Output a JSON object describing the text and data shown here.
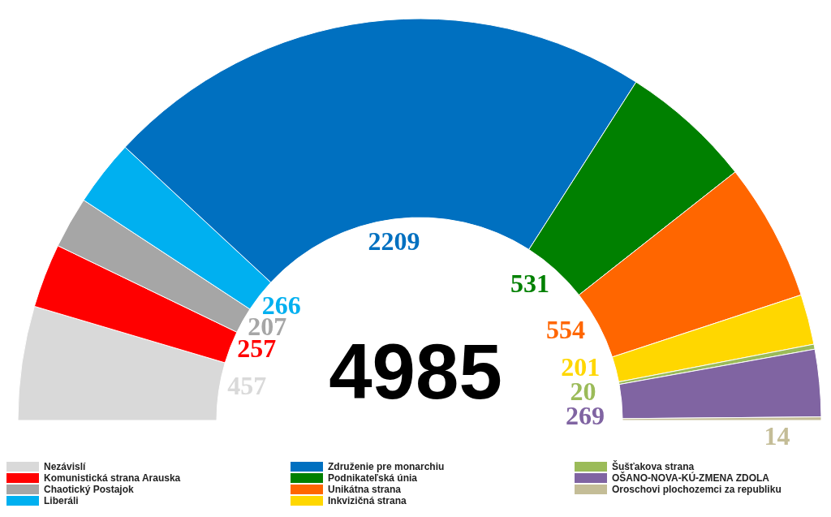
{
  "chart_data": {
    "type": "donut",
    "categories": [
      "Nezávislí",
      "Komunistická strana Arauska",
      "Chaotický Postajok",
      "Liberáli",
      "Združenie pre monarchiu",
      "Podnikateľská únia",
      "Unikátna strana",
      "Inkvizičná strana",
      "Šušťakova strana",
      "OŠANO-NOVA-KÚ-ZMENA ZDOLA",
      "Oroschovi plochozemci za republiku"
    ],
    "values": [
      457,
      257,
      207,
      266,
      2209,
      531,
      554,
      201,
      20,
      269,
      14
    ],
    "colors": [
      "#d9d9d9",
      "#ff0000",
      "#a6a6a6",
      "#00b0f0",
      "#0070c0",
      "#008000",
      "#ff6600",
      "#ffd700",
      "#9bbb59",
      "#8064a2",
      "#c4bd97"
    ],
    "data_labels": true,
    "legend": "bottom",
    "annotations": [
      "4985"
    ]
  }
}
